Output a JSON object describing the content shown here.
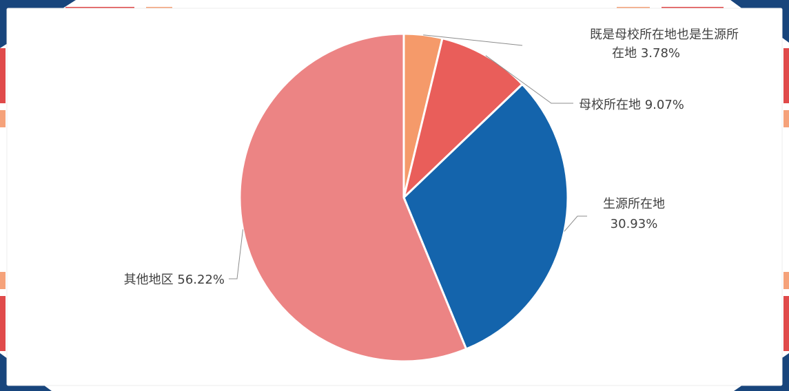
{
  "chart_data": {
    "type": "pie",
    "title": "",
    "start_angle_deg": 0,
    "direction": "clockwise",
    "slices": [
      {
        "label": "既是母校所在地也是生源所在地",
        "value": 3.78,
        "display": "3.78%",
        "color": "#f59a6a",
        "label_lines": [
          "既是母校所在地也是生源所",
          "在地 3.78%"
        ]
      },
      {
        "label": "母校所在地",
        "value": 9.07,
        "display": "9.07%",
        "color": "#e95e5a",
        "label_lines": [
          "母校所在地 9.07%"
        ]
      },
      {
        "label": "生源所在地",
        "value": 30.93,
        "display": "30.93%",
        "color": "#1464ac",
        "label_lines": [
          "生源所在地",
          "30.93%"
        ]
      },
      {
        "label": "其他地区",
        "value": 56.22,
        "display": "56.22%",
        "color": "#ec8484",
        "label_lines": [
          "其他地区 56.22%"
        ]
      }
    ]
  },
  "frame": {
    "navy": "#18457c",
    "red": "#e04a4a",
    "orange": "#f5a27a",
    "panel": "#ffffff",
    "border": "#ececec"
  }
}
